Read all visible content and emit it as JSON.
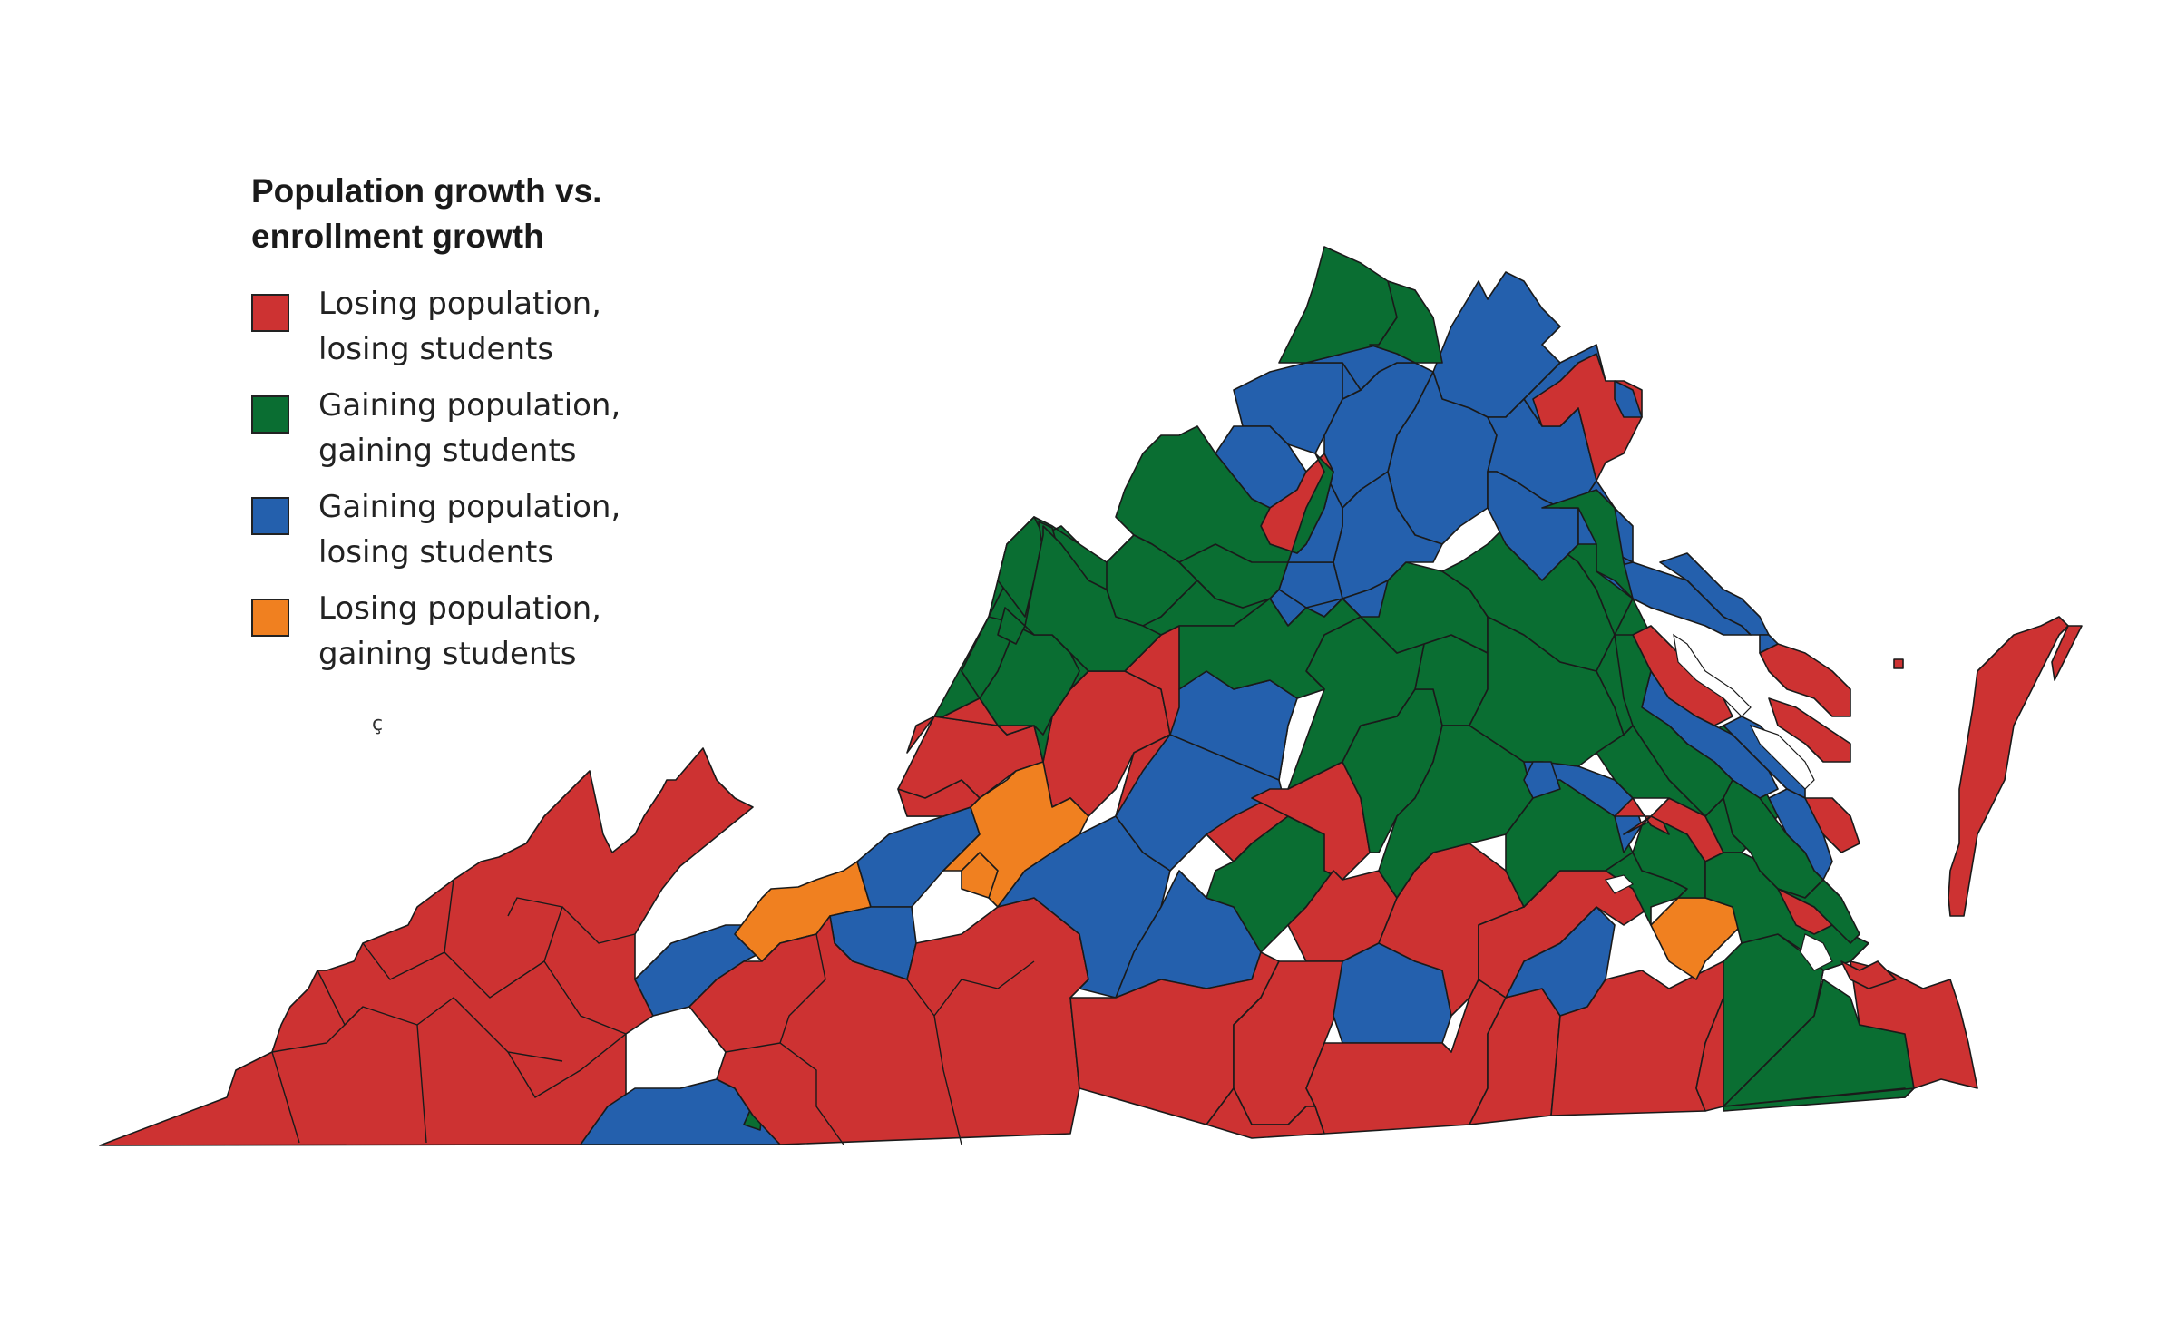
{
  "legend": {
    "title": "Population growth vs.\nenrollment growth",
    "items": [
      {
        "key": "loss_loss",
        "line1": "Losing population,",
        "line2": "losing students",
        "color": "#cd3232"
      },
      {
        "key": "gain_gain",
        "line1": "Gaining population,",
        "line2": "gaining students",
        "color": "#0a6e32"
      },
      {
        "key": "gain_loss",
        "line1": "Gaining population,",
        "line2": "losing students",
        "color": "#2460ad"
      },
      {
        "key": "loss_gain",
        "line1": "Losing population,",
        "line2": "gaining students",
        "color": "#f08020"
      }
    ]
  },
  "stray_glyph": "ç",
  "map": {
    "category_colors": {
      "loss_loss": "#cd3232",
      "gain_gain": "#0a6e32",
      "gain_loss": "#2460ad",
      "loss_gain": "#f08020"
    },
    "border_color": "#1a1a1a",
    "background": "#ffffff"
  }
}
